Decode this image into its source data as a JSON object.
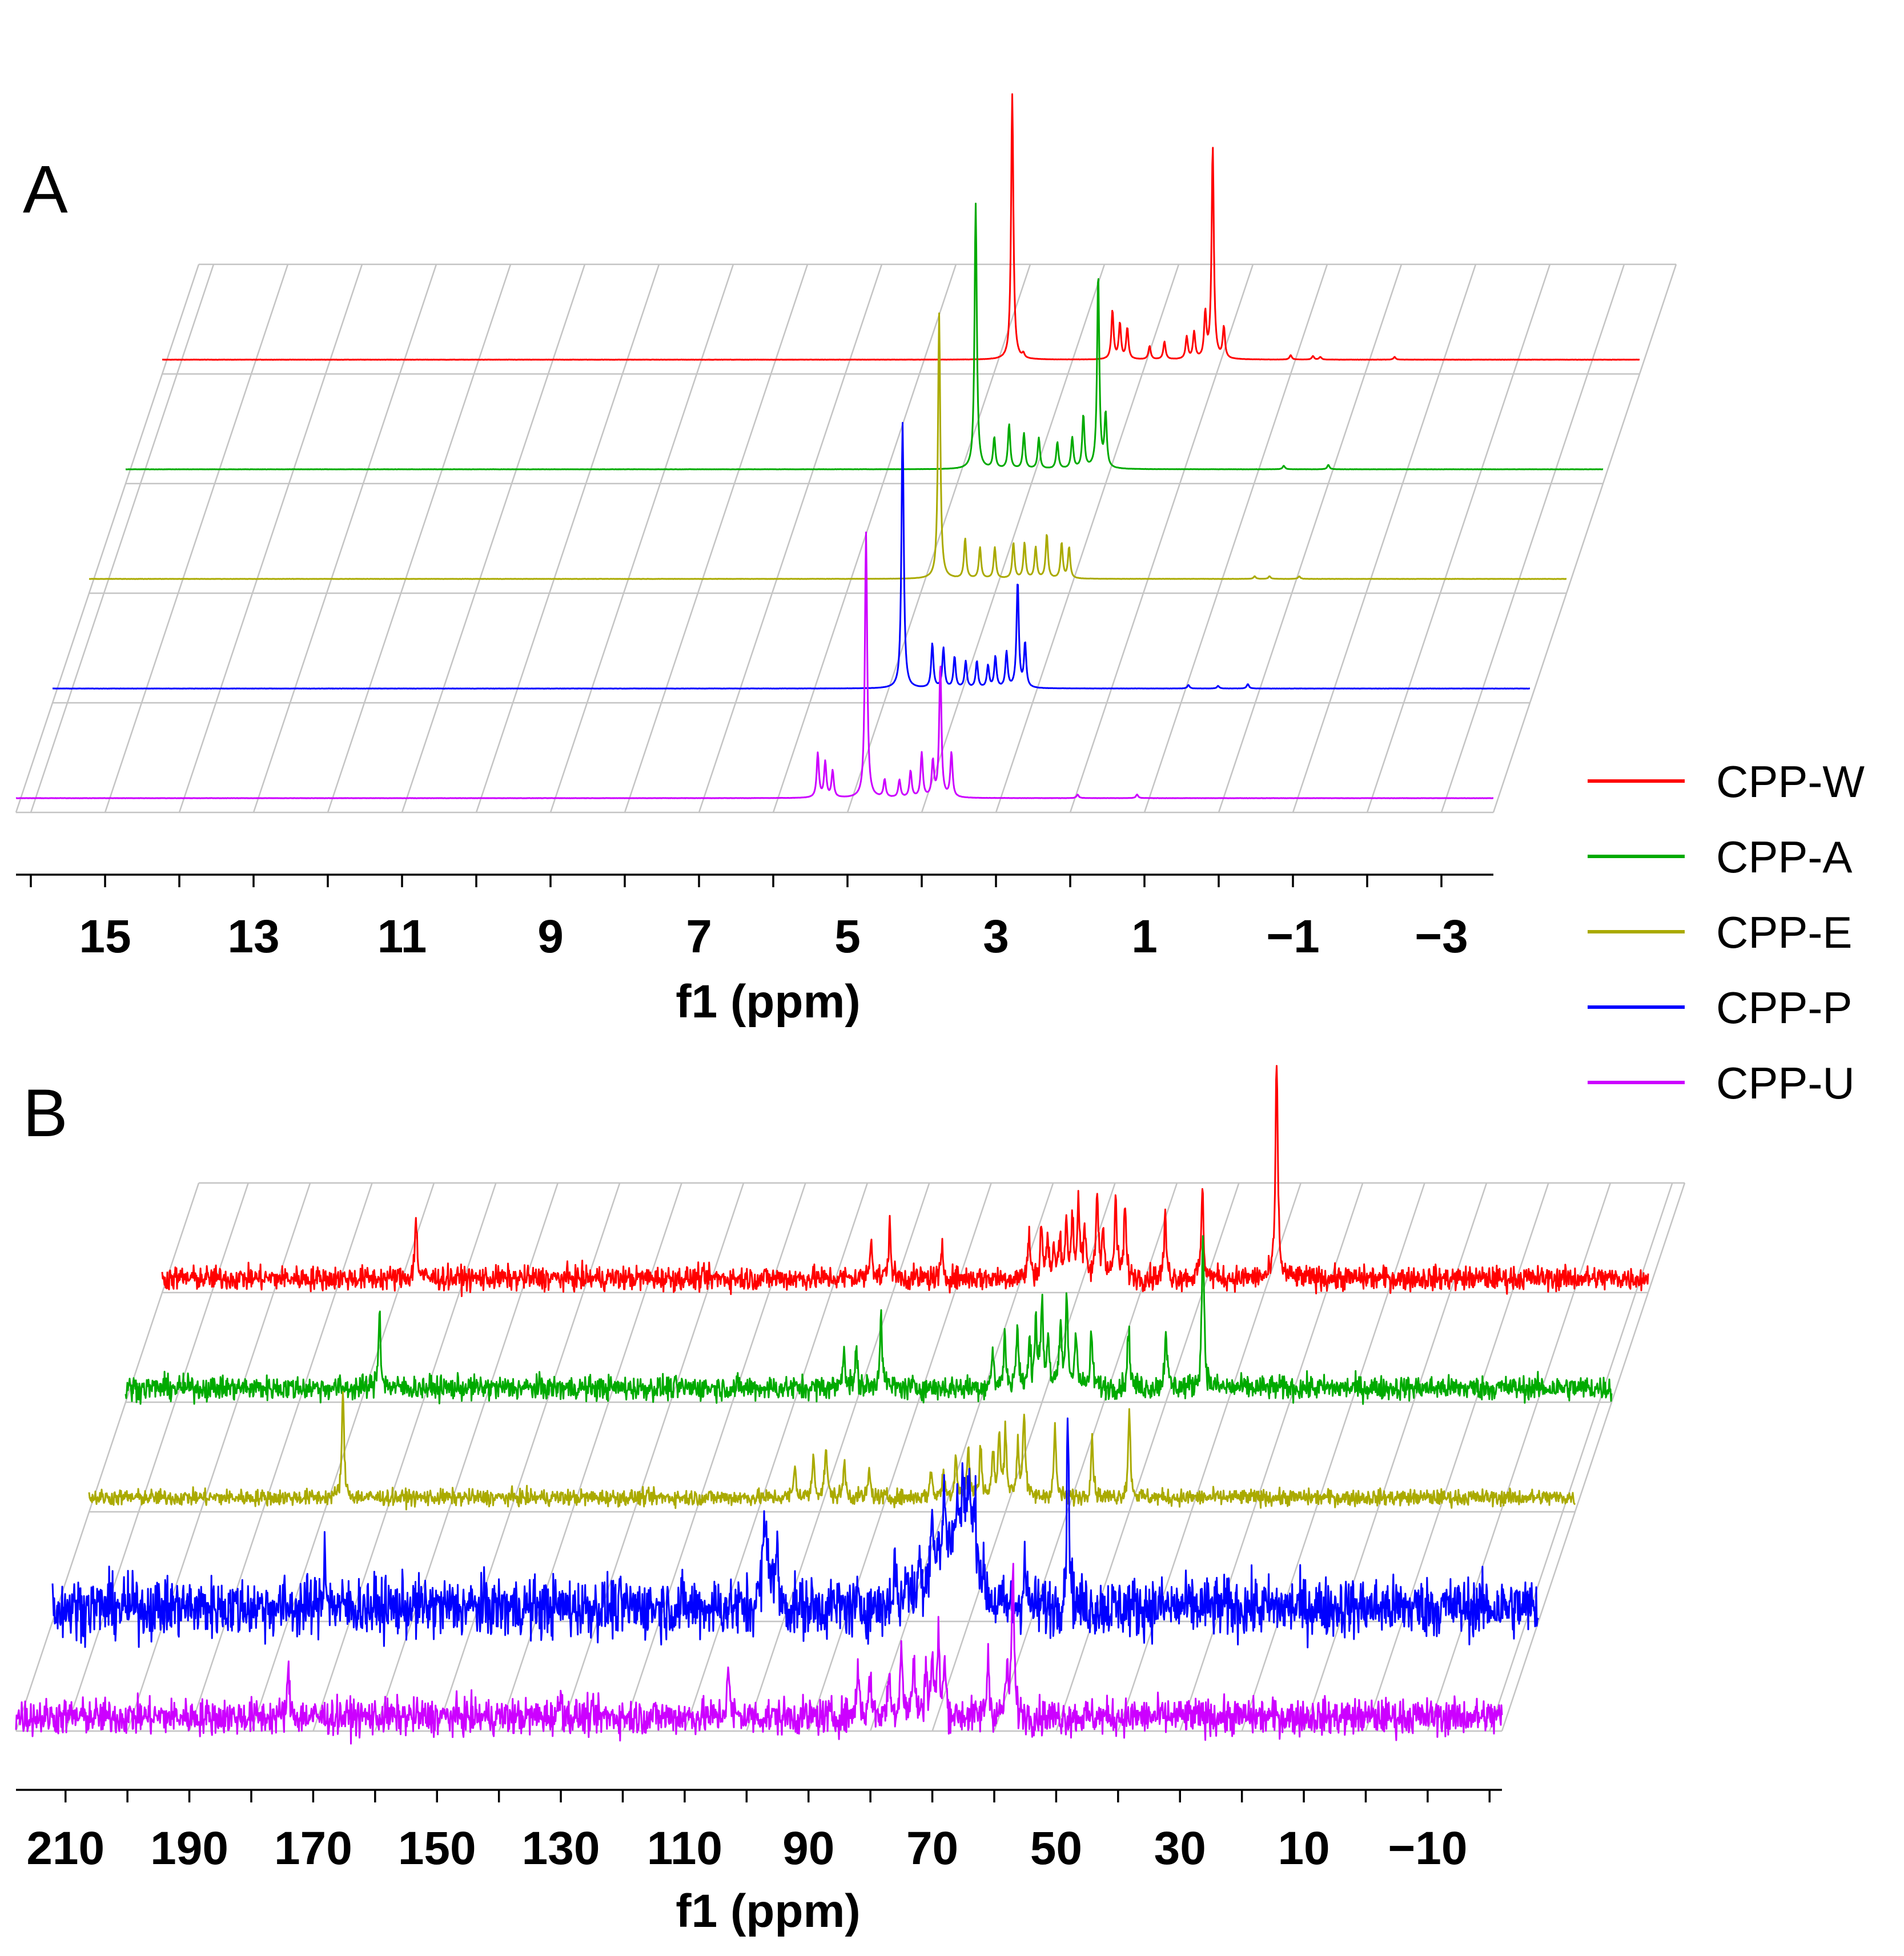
{
  "legend": {
    "entries": [
      {
        "label": "CPP-W",
        "color": "#ff0000"
      },
      {
        "label": "CPP-A",
        "color": "#00aa00"
      },
      {
        "label": "CPP-E",
        "color": "#aaaa00"
      },
      {
        "label": "CPP-P",
        "color": "#0000ff"
      },
      {
        "label": "CPP-U",
        "color": "#cc00ff"
      }
    ]
  },
  "chart_data": [
    {
      "panel": "A",
      "type": "line",
      "subtype": "stacked 1H NMR spectra (pseudo-3D waterfall)",
      "xlabel": "f1 (ppm)",
      "ylabel": "",
      "xlim": [
        16.2,
        -3.7
      ],
      "x_reversed": true,
      "xticks": [
        15,
        13,
        11,
        9,
        7,
        5,
        3,
        1,
        -1,
        -3
      ],
      "xtick_labels": [
        "15",
        "13",
        "11",
        "9",
        "7",
        "5",
        "3",
        "1",
        "−1",
        "−3"
      ],
      "grid": true,
      "series": [
        {
          "name": "CPP-W",
          "color": "#ff0000",
          "peaks": [
            [
              4.75,
              3.0
            ],
            [
              4.6,
              0.05
            ],
            [
              3.4,
              0.55
            ],
            [
              3.3,
              0.4
            ],
            [
              3.2,
              0.35
            ],
            [
              2.9,
              0.15
            ],
            [
              2.7,
              0.2
            ],
            [
              2.4,
              0.25
            ],
            [
              2.3,
              0.3
            ],
            [
              2.15,
              0.5
            ],
            [
              2.05,
              2.4
            ],
            [
              1.9,
              0.35
            ],
            [
              1.0,
              0.05
            ],
            [
              0.7,
              0.04
            ],
            [
              0.6,
              0.03
            ],
            [
              -0.4,
              0.03
            ]
          ],
          "noise": 0.004
        },
        {
          "name": "CPP-A",
          "color": "#00aa00",
          "peaks": [
            [
              4.75,
              3.0
            ],
            [
              4.5,
              0.35
            ],
            [
              4.3,
              0.5
            ],
            [
              4.1,
              0.4
            ],
            [
              3.9,
              0.35
            ],
            [
              3.65,
              0.3
            ],
            [
              3.45,
              0.35
            ],
            [
              3.3,
              0.6
            ],
            [
              3.1,
              2.2
            ],
            [
              3.0,
              0.6
            ],
            [
              0.6,
              0.04
            ],
            [
              0.0,
              0.05
            ]
          ],
          "noise": 0.004
        },
        {
          "name": "CPP-E",
          "color": "#aaaa00",
          "peaks": [
            [
              4.75,
              3.0
            ],
            [
              4.4,
              0.45
            ],
            [
              4.2,
              0.35
            ],
            [
              4.0,
              0.35
            ],
            [
              3.75,
              0.4
            ],
            [
              3.6,
              0.4
            ],
            [
              3.45,
              0.35
            ],
            [
              3.3,
              0.5
            ],
            [
              3.1,
              0.4
            ],
            [
              3.0,
              0.35
            ],
            [
              0.5,
              0.03
            ],
            [
              0.3,
              0.03
            ],
            [
              -0.1,
              0.03
            ]
          ],
          "noise": 0.004
        },
        {
          "name": "CPP-P",
          "color": "#0000ff",
          "peaks": [
            [
              4.75,
              3.0
            ],
            [
              4.35,
              0.5
            ],
            [
              4.2,
              0.45
            ],
            [
              4.05,
              0.35
            ],
            [
              3.9,
              0.3
            ],
            [
              3.75,
              0.3
            ],
            [
              3.6,
              0.25
            ],
            [
              3.5,
              0.35
            ],
            [
              3.35,
              0.4
            ],
            [
              3.2,
              1.2
            ],
            [
              3.1,
              0.5
            ],
            [
              0.9,
              0.04
            ],
            [
              0.5,
              0.03
            ],
            [
              0.1,
              0.05
            ]
          ],
          "noise": 0.004
        },
        {
          "name": "CPP-U",
          "color": "#cc00ff",
          "peaks": [
            [
              5.4,
              0.5
            ],
            [
              5.3,
              0.4
            ],
            [
              5.2,
              0.3
            ],
            [
              4.75,
              3.0
            ],
            [
              4.5,
              0.2
            ],
            [
              4.3,
              0.2
            ],
            [
              4.15,
              0.3
            ],
            [
              4.0,
              0.5
            ],
            [
              3.85,
              0.4
            ],
            [
              3.75,
              1.5
            ],
            [
              3.6,
              0.5
            ],
            [
              1.9,
              0.04
            ],
            [
              1.1,
              0.04
            ]
          ],
          "noise": 0.004
        }
      ]
    },
    {
      "panel": "B",
      "type": "line",
      "subtype": "stacked 13C NMR spectra (pseudo-3D waterfall)",
      "xlabel": "f1 (ppm)",
      "ylabel": "",
      "xlim": [
        218,
        -22
      ],
      "x_reversed": true,
      "xticks": [
        210,
        190,
        170,
        150,
        130,
        110,
        90,
        70,
        50,
        30,
        10,
        -10
      ],
      "xtick_labels": [
        "210",
        "190",
        "170",
        "150",
        "130",
        "110",
        "90",
        "70",
        "50",
        "30",
        "10",
        "−10"
      ],
      "grid": true,
      "series": [
        {
          "name": "CPP-W",
          "color": "#ff0000",
          "peaks": [
            [
              177,
              0.7
            ],
            [
              103.5,
              0.5
            ],
            [
              100.5,
              0.6
            ],
            [
              92,
              0.3
            ],
            [
              78,
              0.5
            ],
            [
              76,
              0.6
            ],
            [
              75,
              0.4
            ],
            [
              74,
              0.3
            ],
            [
              73,
              0.5
            ],
            [
              72,
              0.6
            ],
            [
              71,
              0.7
            ],
            [
              70,
              0.9
            ],
            [
              69,
              0.5
            ],
            [
              67,
              1.0
            ],
            [
              66,
              0.6
            ],
            [
              64,
              0.9
            ],
            [
              62.5,
              0.8
            ],
            [
              56,
              0.7
            ],
            [
              50,
              1.0
            ],
            [
              38,
              2.6
            ]
          ],
          "noise": 0.12
        },
        {
          "name": "CPP-A",
          "color": "#00aa00",
          "peaks": [
            [
              177,
              0.9
            ],
            [
              102,
              0.5
            ],
            [
              100,
              0.4
            ],
            [
              96,
              0.9
            ],
            [
              78,
              0.4
            ],
            [
              76,
              0.6
            ],
            [
              74,
              0.7
            ],
            [
              72,
              0.5
            ],
            [
              71,
              0.8
            ],
            [
              70,
              1.0
            ],
            [
              69,
              0.6
            ],
            [
              67,
              0.7
            ],
            [
              66,
              1.0
            ],
            [
              64.5,
              0.7
            ],
            [
              62,
              0.6
            ],
            [
              56,
              0.7
            ],
            [
              50,
              0.7
            ],
            [
              44,
              1.8
            ]
          ],
          "noise": 0.12
        },
        {
          "name": "CPP-E",
          "color": "#aaaa00",
          "peaks": [
            [
              177,
              1.2
            ],
            [
              104,
              0.35
            ],
            [
              101,
              0.5
            ],
            [
              99,
              0.6
            ],
            [
              96,
              0.4
            ],
            [
              92,
              0.3
            ],
            [
              82,
              0.3
            ],
            [
              80,
              0.3
            ],
            [
              78,
              0.5
            ],
            [
              76,
              0.6
            ],
            [
              74,
              0.6
            ],
            [
              72,
              0.5
            ],
            [
              71,
              0.7
            ],
            [
              70,
              0.8
            ],
            [
              68,
              0.6
            ],
            [
              67,
              1.0
            ],
            [
              62,
              0.8
            ],
            [
              56,
              0.7
            ],
            [
              50,
              1.0
            ]
          ],
          "noise": 0.08
        },
        {
          "name": "CPP-P",
          "color": "#0000ff",
          "peaks": [
            [
              174,
              0.7
            ],
            [
              103,
              0.6
            ],
            [
              101,
              0.5
            ],
            [
              82,
              0.6
            ],
            [
              80,
              0.5
            ],
            [
              78,
              0.4
            ],
            [
              76,
              0.7
            ],
            [
              74,
              0.7
            ],
            [
              72,
              0.5
            ],
            [
              71,
              0.6
            ],
            [
              70,
              0.7
            ],
            [
              69,
              0.5
            ],
            [
              61,
              0.6
            ],
            [
              54,
              2.2
            ]
          ],
          "broad": [
            [
              102.5,
              0.5,
              1.3
            ],
            [
              74,
              0.6,
              3.5
            ],
            [
              70,
              0.7,
              2.5
            ]
          ],
          "noise": 0.3
        },
        {
          "name": "CPP-U",
          "color": "#cc00ff",
          "peaks": [
            [
              174,
              0.5
            ],
            [
              130,
              0.3
            ],
            [
              103,
              0.6
            ],
            [
              82,
              0.6
            ],
            [
              80,
              0.5
            ],
            [
              77,
              0.5
            ],
            [
              75,
              0.9
            ],
            [
              73,
              0.7
            ],
            [
              71,
              0.6
            ],
            [
              70,
              0.7
            ],
            [
              69,
              0.9
            ],
            [
              68,
              0.6
            ],
            [
              61,
              0.7
            ],
            [
              58,
              0.5
            ],
            [
              57,
              1.8
            ]
          ],
          "noise": 0.18
        }
      ]
    }
  ],
  "panel_labels": {
    "a": "A",
    "b": "B"
  }
}
